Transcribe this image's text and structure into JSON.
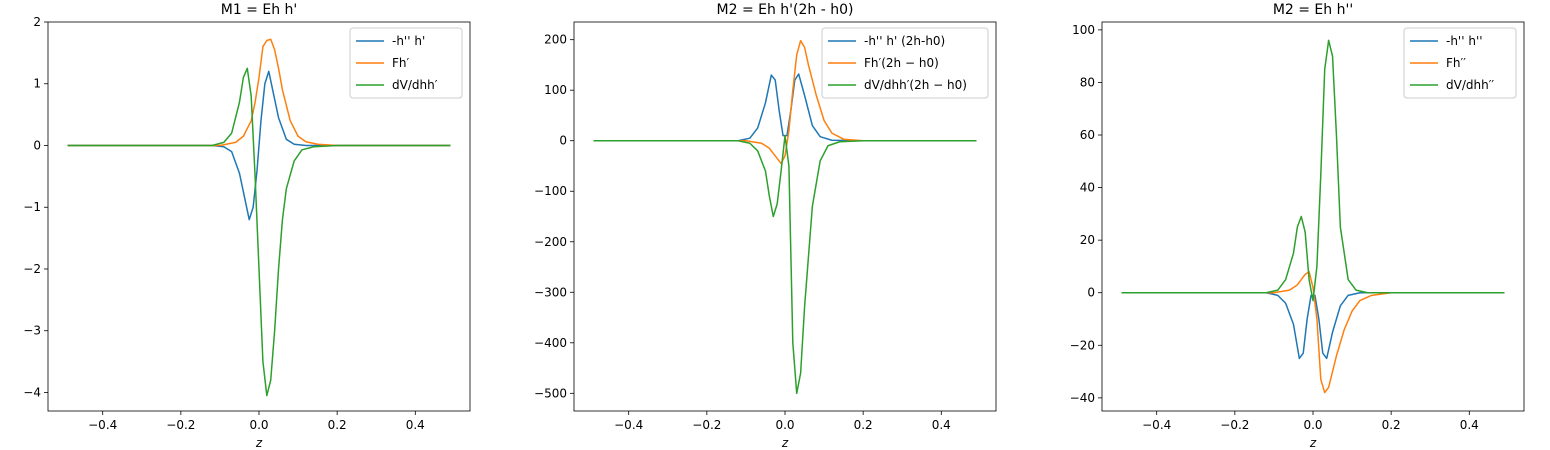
{
  "figure": {
    "title": ""
  },
  "colors": {
    "blue": "#1f77b4",
    "orange": "#ff7f0e",
    "green": "#2ca02c"
  },
  "chart_data": [
    {
      "type": "line",
      "title": "M1 = Eh h'",
      "xlabel": "z",
      "ylabel": "",
      "xlim": [
        -0.54,
        0.54
      ],
      "ylim": [
        -4.3,
        2.0
      ],
      "xticks": [
        -0.4,
        -0.2,
        0.0,
        0.2,
        0.4
      ],
      "xtick_labels": [
        "−0.4",
        "−0.2",
        "0.0",
        "0.2",
        "0.4"
      ],
      "yticks": [
        -4,
        -3,
        -2,
        -1,
        0,
        1,
        2
      ],
      "ytick_labels": [
        "−4",
        "−3",
        "−2",
        "−1",
        "0",
        "1",
        "2"
      ],
      "legend": "top-right",
      "series": [
        {
          "name": "-h'' h'",
          "color": "#1f77b4",
          "x": [
            -0.49,
            -0.12,
            -0.09,
            -0.07,
            -0.05,
            -0.035,
            -0.025,
            -0.015,
            -0.005,
            0.005,
            0.015,
            0.025,
            0.035,
            0.05,
            0.07,
            0.09,
            0.12,
            0.2,
            0.49
          ],
          "y": [
            0,
            0,
            -0.02,
            -0.1,
            -0.45,
            -0.9,
            -1.2,
            -1.0,
            -0.4,
            0.4,
            1.0,
            1.2,
            0.9,
            0.45,
            0.1,
            0.02,
            0,
            0,
            0
          ]
        },
        {
          "name": "Fh′",
          "color": "#ff7f0e",
          "x": [
            -0.49,
            -0.1,
            -0.06,
            -0.04,
            -0.02,
            -0.01,
            0.0,
            0.01,
            0.02,
            0.03,
            0.04,
            0.05,
            0.06,
            0.08,
            0.1,
            0.12,
            0.15,
            0.2,
            0.49
          ],
          "y": [
            0,
            0,
            0.05,
            0.15,
            0.4,
            0.7,
            1.1,
            1.6,
            1.7,
            1.72,
            1.55,
            1.25,
            0.9,
            0.4,
            0.15,
            0.06,
            0.02,
            0,
            0
          ]
        },
        {
          "name": "dV/dhh′",
          "color": "#2ca02c",
          "x": [
            -0.49,
            -0.12,
            -0.09,
            -0.07,
            -0.05,
            -0.04,
            -0.03,
            -0.02,
            -0.01,
            0.0,
            0.01,
            0.02,
            0.03,
            0.04,
            0.05,
            0.06,
            0.07,
            0.09,
            0.11,
            0.14,
            0.2,
            0.49
          ],
          "y": [
            0,
            0,
            0.05,
            0.2,
            0.7,
            1.1,
            1.25,
            0.8,
            -0.5,
            -2.0,
            -3.5,
            -4.05,
            -3.8,
            -3.0,
            -2.0,
            -1.2,
            -0.7,
            -0.25,
            -0.07,
            -0.02,
            0,
            0
          ]
        }
      ]
    },
    {
      "type": "line",
      "title": "M2 = Eh h'(2h - h0)",
      "xlabel": "z",
      "ylabel": "",
      "xlim": [
        -0.54,
        0.54
      ],
      "ylim": [
        -535,
        235
      ],
      "xticks": [
        -0.4,
        -0.2,
        0.0,
        0.2,
        0.4
      ],
      "xtick_labels": [
        "−0.4",
        "−0.2",
        "0.0",
        "0.2",
        "0.4"
      ],
      "yticks": [
        -500,
        -400,
        -300,
        -200,
        -100,
        0,
        100,
        200
      ],
      "ytick_labels": [
        "−500",
        "−400",
        "−300",
        "−200",
        "−100",
        "0",
        "100",
        "200"
      ],
      "legend": "top-right",
      "series": [
        {
          "name": "-h'' h' (2h-h0)",
          "color": "#1f77b4",
          "x": [
            -0.49,
            -0.12,
            -0.09,
            -0.07,
            -0.05,
            -0.035,
            -0.025,
            -0.015,
            -0.005,
            0.005,
            0.015,
            0.025,
            0.035,
            0.05,
            0.07,
            0.09,
            0.12,
            0.2,
            0.49
          ],
          "y": [
            0,
            0,
            5,
            25,
            75,
            130,
            120,
            60,
            10,
            10,
            60,
            120,
            132,
            90,
            30,
            8,
            1,
            0,
            0
          ]
        },
        {
          "name": "Fh′(2h − h0)",
          "color": "#ff7f0e",
          "x": [
            -0.49,
            -0.1,
            -0.06,
            -0.04,
            -0.02,
            -0.01,
            0.0,
            0.01,
            0.02,
            0.03,
            0.04,
            0.05,
            0.06,
            0.08,
            0.1,
            0.12,
            0.15,
            0.2,
            0.49
          ],
          "y": [
            0,
            0,
            -5,
            -15,
            -35,
            -45,
            -30,
            20,
            100,
            170,
            198,
            185,
            150,
            90,
            40,
            15,
            3,
            0,
            0
          ]
        },
        {
          "name": "dV/dhh′(2h − h0)",
          "color": "#2ca02c",
          "x": [
            -0.49,
            -0.12,
            -0.09,
            -0.07,
            -0.05,
            -0.04,
            -0.03,
            -0.02,
            -0.01,
            0.0,
            0.01,
            0.02,
            0.03,
            0.04,
            0.05,
            0.06,
            0.07,
            0.09,
            0.11,
            0.14,
            0.2,
            0.49
          ],
          "y": [
            0,
            0,
            -5,
            -20,
            -60,
            -110,
            -150,
            -125,
            -60,
            10,
            -50,
            -400,
            -500,
            -460,
            -330,
            -230,
            -130,
            -40,
            -10,
            -2,
            0,
            0
          ]
        }
      ]
    },
    {
      "type": "line",
      "title": "M2 = Eh h''",
      "xlabel": "z",
      "ylabel": "",
      "xlim": [
        -0.54,
        0.54
      ],
      "ylim": [
        -45,
        103
      ],
      "xticks": [
        -0.4,
        -0.2,
        0.0,
        0.2,
        0.4
      ],
      "xtick_labels": [
        "−0.4",
        "−0.2",
        "0.0",
        "0.2",
        "0.4"
      ],
      "yticks": [
        -40,
        -20,
        0,
        20,
        40,
        60,
        80,
        100
      ],
      "ytick_labels": [
        "−40",
        "−20",
        "0",
        "20",
        "40",
        "60",
        "80",
        "100"
      ],
      "legend": "top-right",
      "series": [
        {
          "name": "-h'' h''",
          "color": "#1f77b4",
          "x": [
            -0.49,
            -0.12,
            -0.09,
            -0.07,
            -0.05,
            -0.035,
            -0.025,
            -0.015,
            -0.005,
            0.005,
            0.015,
            0.025,
            0.035,
            0.05,
            0.07,
            0.09,
            0.12,
            0.2,
            0.49
          ],
          "y": [
            0,
            0,
            -1,
            -4,
            -12,
            -25,
            -23,
            -10,
            -1,
            -1,
            -10,
            -23,
            -25,
            -15,
            -5,
            -1,
            0,
            0,
            0
          ]
        },
        {
          "name": "Fh′′",
          "color": "#ff7f0e",
          "x": [
            -0.49,
            -0.1,
            -0.06,
            -0.04,
            -0.02,
            -0.01,
            0.0,
            0.01,
            0.02,
            0.03,
            0.04,
            0.05,
            0.06,
            0.08,
            0.1,
            0.12,
            0.15,
            0.2,
            0.49
          ],
          "y": [
            0,
            0,
            1,
            3,
            7,
            8,
            2,
            -10,
            -33,
            -38,
            -36,
            -30,
            -24,
            -14,
            -7,
            -3,
            -1,
            0,
            0
          ]
        },
        {
          "name": "dV/dhh′′",
          "color": "#2ca02c",
          "x": [
            -0.49,
            -0.12,
            -0.09,
            -0.07,
            -0.05,
            -0.04,
            -0.03,
            -0.02,
            -0.01,
            0.0,
            0.01,
            0.02,
            0.03,
            0.04,
            0.05,
            0.06,
            0.07,
            0.09,
            0.11,
            0.14,
            0.2,
            0.49
          ],
          "y": [
            0,
            0,
            1,
            5,
            15,
            25,
            29,
            23,
            5,
            -3,
            10,
            45,
            85,
            96,
            90,
            60,
            25,
            5,
            1,
            0,
            0,
            0
          ]
        }
      ]
    }
  ]
}
